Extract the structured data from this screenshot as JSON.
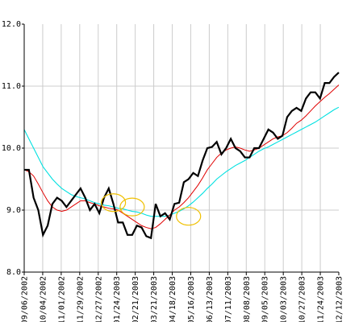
{
  "chart_data": {
    "type": "line",
    "ylim": [
      8.0,
      12.0
    ],
    "y_ticks": [
      "8.0",
      "9.0",
      "10.0",
      "11.0",
      "12.0"
    ],
    "x_ticks": [
      "09/06/2002",
      "10/04/2002",
      "11/01/2002",
      "11/29/2002",
      "12/27/2002",
      "01/24/2003",
      "02/21/2003",
      "03/21/2003",
      "04/18/2003",
      "05/16/2003",
      "06/13/2003",
      "07/11/2003",
      "08/08/2003",
      "09/05/2003",
      "10/03/2003",
      "10/27/2003",
      "11/24/2003",
      "12/12/2003"
    ],
    "grid": true,
    "colors": {
      "price": "#000000",
      "ma_short": "#e00000",
      "ma_long": "#00e0e0",
      "markers": "#f0c000",
      "grid": "#cccccc"
    },
    "series": [
      {
        "values": [
          9.65,
          9.65,
          9.2,
          9.0,
          8.6,
          8.75,
          9.1,
          9.2,
          9.15,
          9.05,
          9.15,
          9.25,
          9.35,
          9.2,
          9.0,
          9.1,
          8.95,
          9.2,
          9.35,
          9.1,
          8.8,
          8.8,
          8.6,
          8.6,
          8.75,
          8.72,
          8.58,
          8.55,
          9.1,
          8.9,
          8.95,
          8.85,
          9.1,
          9.12,
          9.45,
          9.5,
          9.6,
          9.55,
          9.8,
          10.0,
          10.02,
          10.1,
          9.9,
          10.0,
          10.15,
          10.0,
          9.95,
          9.85,
          9.85,
          10.0,
          10.0,
          10.15,
          10.3,
          10.25,
          10.15,
          10.2,
          10.5,
          10.6,
          10.65,
          10.6,
          10.8,
          10.9,
          10.9,
          10.8,
          11.05,
          11.05,
          11.15,
          11.22
        ]
      },
      {
        "values": [
          9.65,
          9.62,
          9.55,
          9.42,
          9.28,
          9.15,
          9.05,
          9.0,
          8.98,
          9.0,
          9.05,
          9.1,
          9.15,
          9.15,
          9.12,
          9.1,
          9.07,
          9.05,
          9.03,
          9.02,
          9.0,
          8.95,
          8.9,
          8.85,
          8.8,
          8.75,
          8.72,
          8.7,
          8.72,
          8.78,
          8.85,
          8.92,
          9.0,
          9.05,
          9.12,
          9.2,
          9.3,
          9.4,
          9.52,
          9.65,
          9.75,
          9.85,
          9.92,
          9.97,
          10.0,
          10.02,
          10.0,
          9.97,
          9.95,
          9.97,
          10.0,
          10.05,
          10.1,
          10.15,
          10.18,
          10.2,
          10.25,
          10.32,
          10.4,
          10.45,
          10.52,
          10.6,
          10.68,
          10.75,
          10.82,
          10.88,
          10.95,
          11.02
        ]
      },
      {
        "values": [
          10.3,
          10.15,
          10.0,
          9.85,
          9.7,
          9.6,
          9.5,
          9.42,
          9.35,
          9.3,
          9.25,
          9.22,
          9.2,
          9.18,
          9.15,
          9.12,
          9.1,
          9.08,
          9.07,
          9.05,
          9.03,
          9.02,
          9.0,
          8.98,
          8.97,
          8.95,
          8.92,
          8.9,
          8.9,
          8.9,
          8.9,
          8.92,
          8.95,
          8.98,
          9.02,
          9.07,
          9.13,
          9.2,
          9.27,
          9.35,
          9.42,
          9.5,
          9.56,
          9.62,
          9.67,
          9.72,
          9.76,
          9.8,
          9.85,
          9.9,
          9.95,
          9.99,
          10.02,
          10.06,
          10.1,
          10.14,
          10.18,
          10.22,
          10.26,
          10.3,
          10.34,
          10.38,
          10.42,
          10.47,
          10.52,
          10.57,
          10.62,
          10.66
        ]
      }
    ],
    "markers": [
      {
        "cx_index": 19,
        "cy": 9.12
      },
      {
        "cx_index": 23,
        "cy": 9.05
      },
      {
        "cx_index": 35,
        "cy": 8.9
      }
    ]
  }
}
